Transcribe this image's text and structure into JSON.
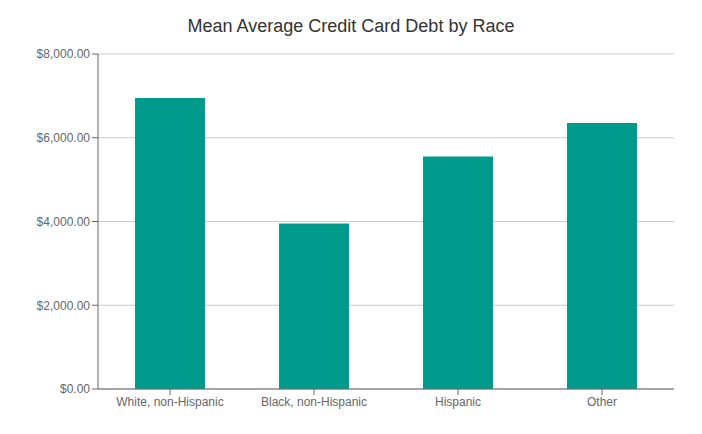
{
  "chart_data": {
    "type": "bar",
    "title": "Mean Average Credit Card Debt by Race",
    "categories": [
      "White, non-Hispanic",
      "Black, non-Hispanic",
      "Hispanic",
      "Other"
    ],
    "values": [
      6950,
      3950,
      5550,
      6350
    ],
    "color": "#009B8D",
    "ylim": [
      0,
      8000
    ],
    "yticks": [
      {
        "value": 0,
        "label": "$0.00"
      },
      {
        "value": 2000,
        "label": "$2,000.00"
      },
      {
        "value": 4000,
        "label": "$4,000.00"
      },
      {
        "value": 6000,
        "label": "$6,000.00"
      },
      {
        "value": 8000,
        "label": "$8,000.00"
      }
    ],
    "grid": true
  }
}
